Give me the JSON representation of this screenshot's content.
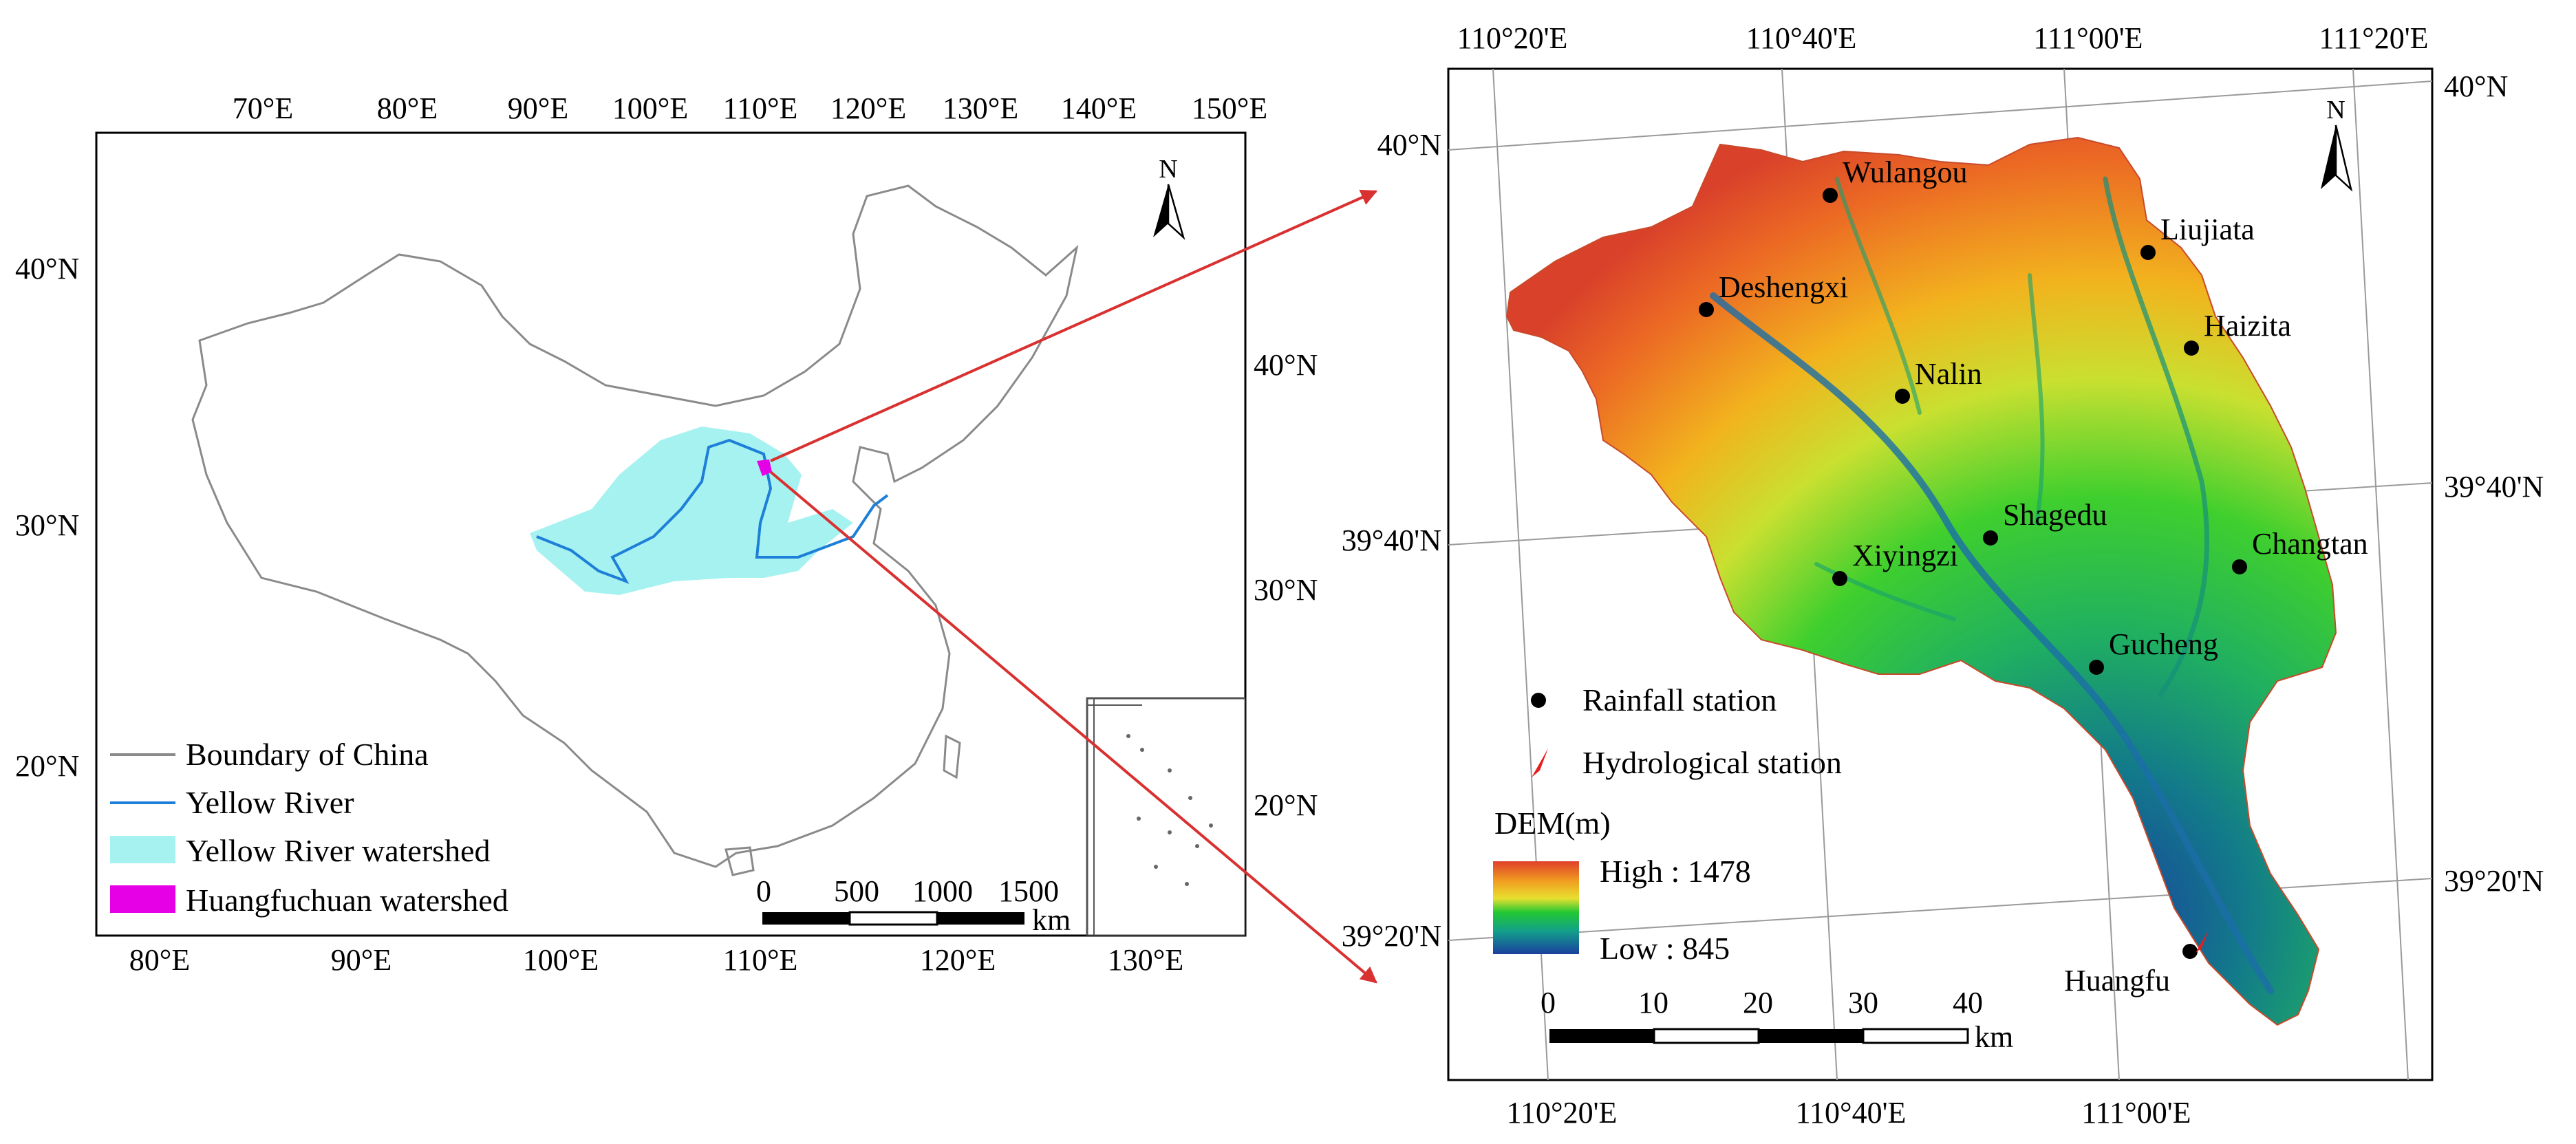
{
  "left_map": {
    "top_lon_ticks": [
      "70°E",
      "80°E",
      "90°E",
      "100°E",
      "110°E",
      "120°E",
      "130°E",
      "140°E",
      "150°E"
    ],
    "bottom_lon_ticks": [
      "80°E",
      "90°E",
      "100°E",
      "110°E",
      "120°E",
      "130°E"
    ],
    "left_lat_ticks": [
      "40°N",
      "30°N",
      "20°N"
    ],
    "right_lat_ticks": [
      "40°N",
      "30°N",
      "20°N"
    ],
    "north_label": "N",
    "legend": [
      {
        "label": "Boundary of China",
        "symbol": "gray-line",
        "color": "#8a8a8a"
      },
      {
        "label": "Yellow River",
        "symbol": "blue-line",
        "color": "#1e7fd8"
      },
      {
        "label": "Yellow River watershed",
        "symbol": "cyan-patch",
        "color": "#a6f2f0"
      },
      {
        "label": "Huangfuchuan watershed",
        "symbol": "magenta-patch",
        "color": "#e600e6"
      }
    ],
    "scale_bar": {
      "ticks": [
        "0",
        "500",
        "1000",
        "1500"
      ],
      "unit": "km"
    }
  },
  "right_map": {
    "top_lon_ticks": [
      "110°20'E",
      "110°40'E",
      "111°00'E",
      "111°20'E"
    ],
    "bottom_lon_ticks": [
      "110°20'E",
      "110°40'E",
      "111°00'E"
    ],
    "left_lat_ticks": [
      "40°N",
      "39°40'N",
      "39°20'N"
    ],
    "right_lat_ticks": [
      "40°N",
      "39°40'N",
      "39°20'N"
    ],
    "north_label": "N",
    "stations": [
      {
        "name": "Wulangou",
        "type": "rainfall"
      },
      {
        "name": "Liujiata",
        "type": "rainfall"
      },
      {
        "name": "Deshengxi",
        "type": "rainfall"
      },
      {
        "name": "Haizita",
        "type": "rainfall"
      },
      {
        "name": "Nalin",
        "type": "rainfall"
      },
      {
        "name": "Shagedu",
        "type": "rainfall"
      },
      {
        "name": "Xiyingzi",
        "type": "rainfall"
      },
      {
        "name": "Changtan",
        "type": "rainfall"
      },
      {
        "name": "Gucheng",
        "type": "rainfall"
      },
      {
        "name": "Huangfu",
        "type": "hydrological"
      }
    ],
    "legend": {
      "rainfall_label": "Rainfall station",
      "hydro_label": "Hydrological station",
      "dem_title": "DEM(m)",
      "dem_high": "High : 1478",
      "dem_low": "Low : 845"
    },
    "scale_bar": {
      "ticks": [
        "0",
        "10",
        "20",
        "30",
        "40"
      ],
      "unit": "km"
    }
  },
  "colors": {
    "arrow": "#d93030",
    "river": "#1e7fd8",
    "watershed": "#a6f2f0",
    "target": "#e600e6",
    "dem_high": "#e0402a",
    "dem_mid": "#22c832",
    "dem_low": "#1a3f9e"
  }
}
